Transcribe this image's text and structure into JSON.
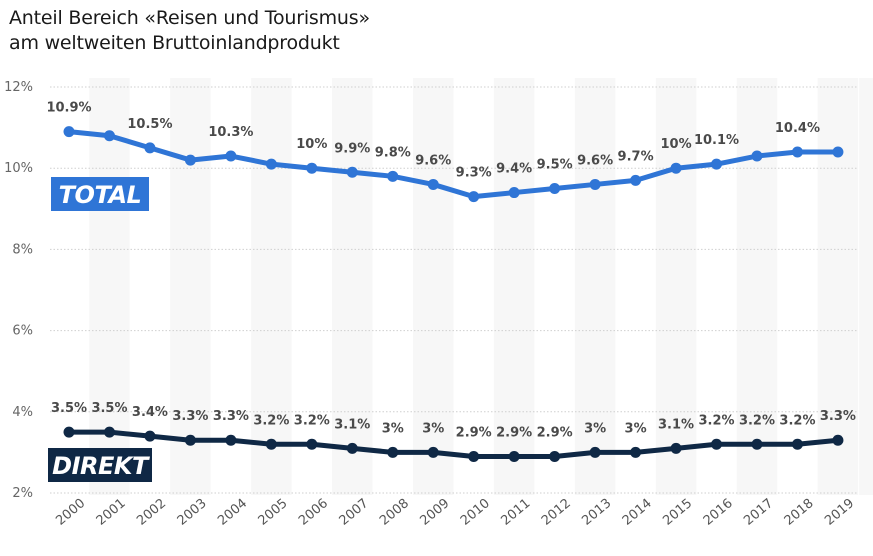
{
  "title": {
    "line1": "Anteil Bereich «Reisen und Tourismus»",
    "line2": "am weltweiten Bruttoinlandprodukt"
  },
  "chart_data": {
    "type": "line",
    "title": "Anteil Bereich «Reisen und Tourismus» am weltweiten Bruttoinlandprodukt",
    "xlabel": "",
    "ylabel": "",
    "x": [
      "2000",
      "2001",
      "2002",
      "2003",
      "2004",
      "2005",
      "2006",
      "2007",
      "2008",
      "2009",
      "2010",
      "2011",
      "2012",
      "2013",
      "2014",
      "2015",
      "2016",
      "2017",
      "2018",
      "2019"
    ],
    "ylim": [
      2,
      12
    ],
    "yticks": [
      2,
      4,
      6,
      8,
      10,
      12
    ],
    "ytick_labels": [
      "2%",
      "4%",
      "6%",
      "8%",
      "10%",
      "12%"
    ],
    "grid": true,
    "series": [
      {
        "name": "TOTAL",
        "color": "#2f75d6",
        "values": [
          10.9,
          10.8,
          10.5,
          10.2,
          10.3,
          10.1,
          10.0,
          9.9,
          9.8,
          9.6,
          9.3,
          9.4,
          9.5,
          9.6,
          9.7,
          10.0,
          10.1,
          10.3,
          10.4,
          10.4
        ],
        "labels": [
          "10.9%",
          "",
          "10.5%",
          "",
          "10.3%",
          "",
          "10%",
          "9.9%",
          "9.8%",
          "9.6%",
          "9.3%",
          "9.4%",
          "9.5%",
          "9.6%",
          "9.7%",
          "10%",
          "10.1%",
          "",
          "10.4%",
          ""
        ]
      },
      {
        "name": "DIREKT",
        "color": "#0f2845",
        "values": [
          3.5,
          3.5,
          3.4,
          3.3,
          3.3,
          3.2,
          3.2,
          3.1,
          3.0,
          3.0,
          2.9,
          2.9,
          2.9,
          3.0,
          3.0,
          3.1,
          3.2,
          3.2,
          3.2,
          3.3
        ],
        "labels": [
          "3.5%",
          "3.5%",
          "3.4%",
          "3.3%",
          "3.3%",
          "3.2%",
          "3.2%",
          "3.1%",
          "3%",
          "3%",
          "2.9%",
          "2.9%",
          "2.9%",
          "3%",
          "3%",
          "3.1%",
          "3.2%",
          "3.2%",
          "3.2%",
          "3.3%"
        ]
      }
    ],
    "annotations": [
      {
        "text": "TOTAL",
        "series": "TOTAL",
        "background": "#2f75d6"
      },
      {
        "text": "DIREKT",
        "series": "DIREKT",
        "background": "#0f2845"
      }
    ],
    "band_color": "#f7f7f7"
  }
}
